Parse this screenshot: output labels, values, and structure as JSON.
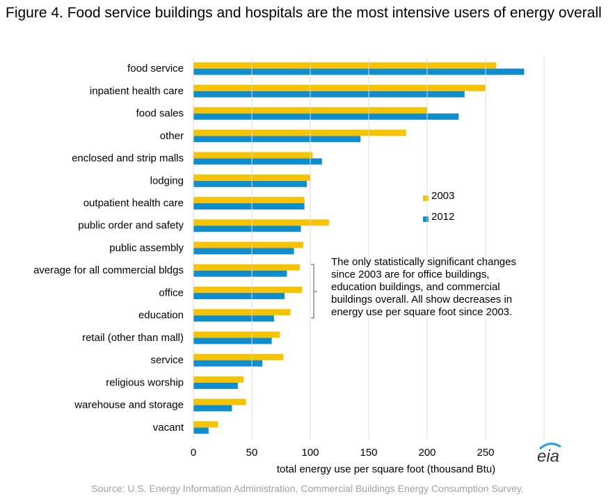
{
  "chart_data": {
    "type": "barh",
    "title": "Figure 4. Food service buildings and hospitals are the most intensive users of energy overall",
    "x_label": "total energy use per square foot (thousand Btu)",
    "annotation": "The only statistically significant changes since 2003 are for office buildings, education buildings, and commercial buildings overall. All show decreases in energy use per square foot since 2003.",
    "source": "Source: U.S. Energy Information Administration, Commercial Buildings Energy Consumption Survey.",
    "categories": [
      "food service",
      "inpatient health care",
      "food sales",
      "other",
      "enclosed and strip malls",
      "lodging",
      "outpatient health care",
      "public order and safety",
      "public assembly",
      "average for all commercial bldgs",
      "office",
      "education",
      "retail (other than mall)",
      "service",
      "religious worship",
      "warehouse and storage",
      "vacant"
    ],
    "series": [
      {
        "name": "2003",
        "color": "#f7c200",
        "values": [
          259,
          250,
          200,
          182,
          102,
          100,
          95,
          116,
          94,
          91,
          93,
          83,
          74,
          77,
          43,
          45,
          21
        ]
      },
      {
        "name": "2012",
        "color": "#0f8dcc",
        "values": [
          283,
          232,
          227,
          143,
          110,
          97,
          95,
          92,
          86,
          80,
          78,
          69,
          67,
          59,
          38,
          33,
          13
        ]
      }
    ],
    "xlim": [
      0,
      300
    ],
    "xticks": [
      0,
      50,
      100,
      150,
      200,
      250
    ],
    "grid": true
  }
}
